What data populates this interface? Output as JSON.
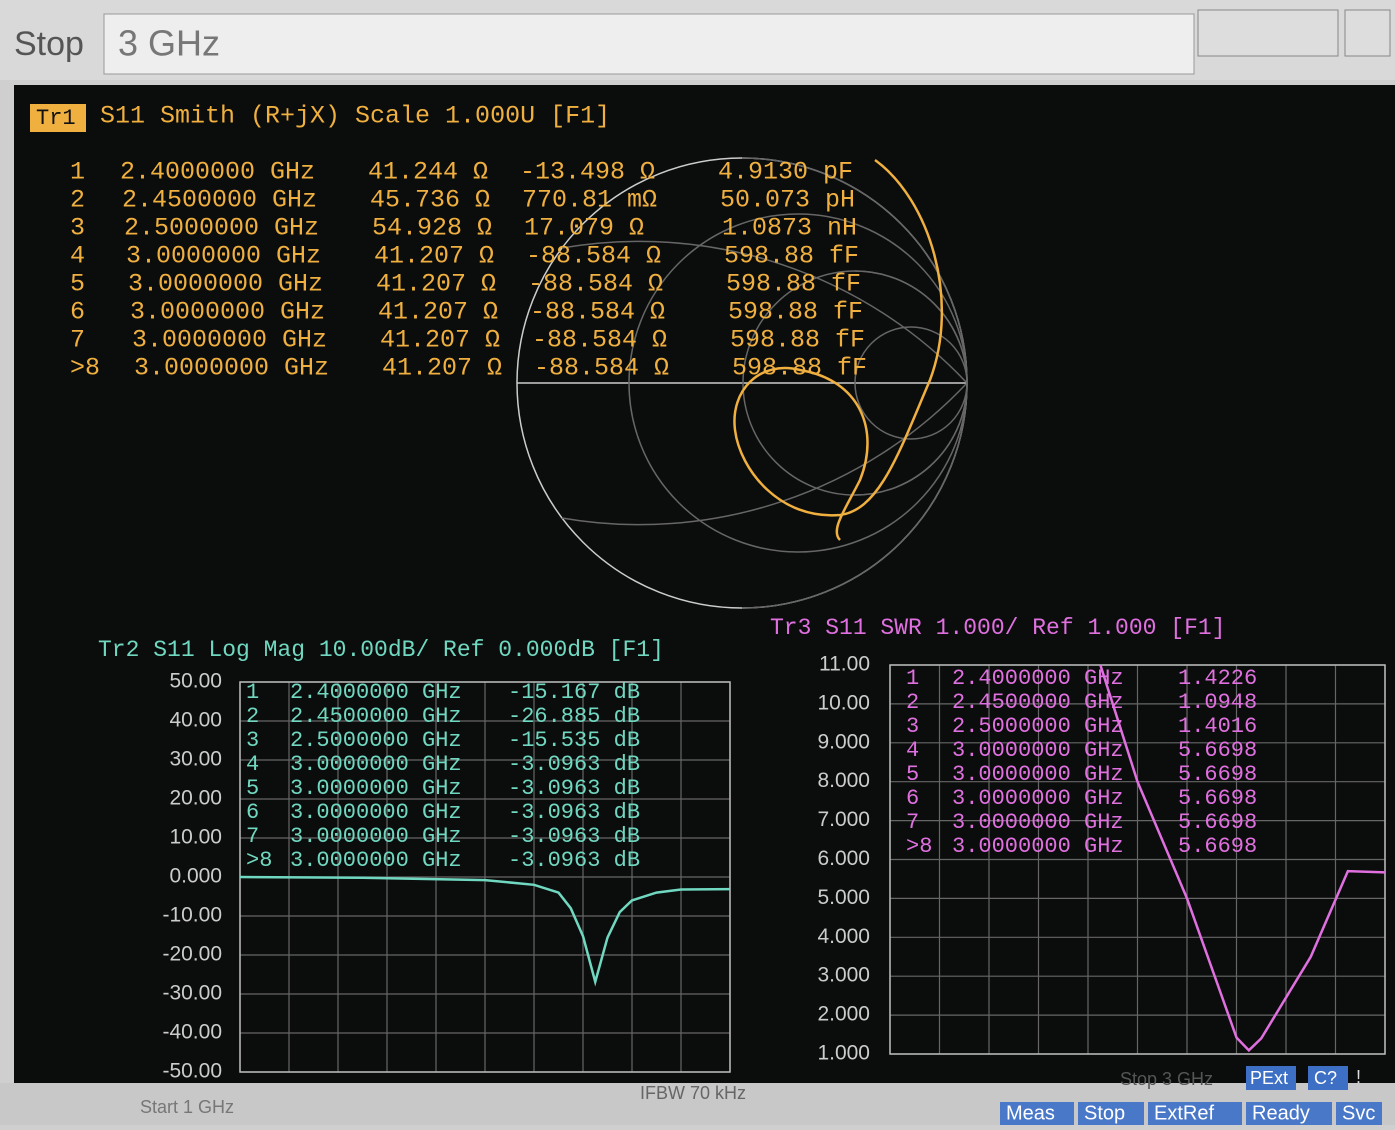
{
  "toolbar": {
    "label": "Stop",
    "value": "3 GHz"
  },
  "tr1": {
    "tag": "Tr1",
    "header": "S11 Smith (R+jX) Scale 1.000U [F1]",
    "color": "#f0b040",
    "markers": [
      [
        "1",
        "2.4000000 GHz",
        "41.244 Ω",
        "-13.498 Ω",
        "4.9130 pF"
      ],
      [
        "2",
        "2.4500000 GHz",
        "45.736 Ω",
        "770.81 mΩ",
        "50.073 pH"
      ],
      [
        "3",
        "2.5000000 GHz",
        "54.928 Ω",
        "17.079 Ω",
        "1.0873 nH"
      ],
      [
        "4",
        "3.0000000 GHz",
        "41.207 Ω",
        "-88.584 Ω",
        "598.88 fF"
      ],
      [
        "5",
        "3.0000000 GHz",
        "41.207 Ω",
        "-88.584 Ω",
        "598.88 fF"
      ],
      [
        "6",
        "3.0000000 GHz",
        "41.207 Ω",
        "-88.584 Ω",
        "598.88 fF"
      ],
      [
        "7",
        "3.0000000 GHz",
        "41.207 Ω",
        "-88.584 Ω",
        "598.88 fF"
      ],
      [
        ">8",
        "3.0000000 GHz",
        "41.207 Ω",
        "-88.584 Ω",
        "598.88 fF"
      ]
    ]
  },
  "tr2": {
    "type": "line",
    "header": "Tr2 S11 Log Mag 10.00dB/ Ref 0.000dB [F1]",
    "color": "#70d8c0",
    "markers": [
      [
        "1",
        "2.4000000 GHz",
        "-15.167 dB"
      ],
      [
        "2",
        "2.4500000 GHz",
        "-26.885 dB"
      ],
      [
        "3",
        "2.5000000 GHz",
        "-15.535 dB"
      ],
      [
        "4",
        "3.0000000 GHz",
        "-3.0963 dB"
      ],
      [
        "5",
        "3.0000000 GHz",
        "-3.0963 dB"
      ],
      [
        "6",
        "3.0000000 GHz",
        "-3.0963 dB"
      ],
      [
        "7",
        "3.0000000 GHz",
        "-3.0963 dB"
      ],
      [
        ">8",
        "3.0000000 GHz",
        "-3.0963 dB"
      ]
    ],
    "xlim": [
      1,
      3
    ],
    "ylim": [
      -50,
      50
    ],
    "yticks": [
      {
        "value": 50,
        "label": "50.00"
      },
      {
        "value": 40,
        "label": "40.00"
      },
      {
        "value": 30,
        "label": "30.00"
      },
      {
        "value": 20,
        "label": "20.00"
      },
      {
        "value": 10,
        "label": "10.00"
      },
      {
        "value": 0,
        "label": "0.000"
      },
      {
        "value": -10,
        "label": "-10.00"
      },
      {
        "value": -20,
        "label": "-20.00"
      },
      {
        "value": -30,
        "label": "-30.00"
      },
      {
        "value": -40,
        "label": "-40.00"
      },
      {
        "value": -50,
        "label": "-50.00"
      }
    ],
    "x": [
      1,
      1.5,
      2,
      2.2,
      2.3,
      2.35,
      2.4,
      2.45,
      2.5,
      2.55,
      2.6,
      2.7,
      2.8,
      3
    ],
    "values": [
      0,
      -0.2,
      -0.8,
      -2,
      -4,
      -8,
      -15.167,
      -26.885,
      -15.535,
      -9,
      -6,
      -4,
      -3.2,
      -3.0963
    ]
  },
  "tr3": {
    "type": "line",
    "header": "Tr3 S11 SWR 1.000/ Ref 1.000 [F1]",
    "color": "#e070e0",
    "markers": [
      [
        "1",
        "2.4000000 GHz",
        "1.4226"
      ],
      [
        "2",
        "2.4500000 GHz",
        "1.0948"
      ],
      [
        "3",
        "2.5000000 GHz",
        "1.4016"
      ],
      [
        "4",
        "3.0000000 GHz",
        "5.6698"
      ],
      [
        "5",
        "3.0000000 GHz",
        "5.6698"
      ],
      [
        "6",
        "3.0000000 GHz",
        "5.6698"
      ],
      [
        "7",
        "3.0000000 GHz",
        "5.6698"
      ],
      [
        ">8",
        "3.0000000 GHz",
        "5.6698"
      ]
    ],
    "xlim": [
      1,
      3
    ],
    "ylim": [
      1,
      11
    ],
    "yticks": [
      {
        "value": 11,
        "label": "11.00"
      },
      {
        "value": 10,
        "label": "10.00"
      },
      {
        "value": 9,
        "label": "9.000"
      },
      {
        "value": 8,
        "label": "8.000"
      },
      {
        "value": 7,
        "label": "7.000"
      },
      {
        "value": 6,
        "label": "6.000"
      },
      {
        "value": 5,
        "label": "5.000"
      },
      {
        "value": 4,
        "label": "4.000"
      },
      {
        "value": 3,
        "label": "3.000"
      },
      {
        "value": 2,
        "label": "2.000"
      },
      {
        "value": 1,
        "label": "1.000"
      }
    ],
    "x": [
      1.85,
      2,
      2.2,
      2.4,
      2.45,
      2.5,
      2.7,
      2.85,
      3
    ],
    "values": [
      11,
      8,
      5,
      1.4226,
      1.0948,
      1.4016,
      3.5,
      5.7,
      5.6698
    ]
  },
  "status": {
    "start": "Start 1 GHz",
    "ifbw": "IFBW 70 kHz",
    "stop": "Stop 3 GHz",
    "pext": "PExt",
    "cal": "C?",
    "warn": "!",
    "buttons": [
      "Meas",
      "Stop",
      "ExtRef",
      "Ready",
      "Svc"
    ]
  }
}
